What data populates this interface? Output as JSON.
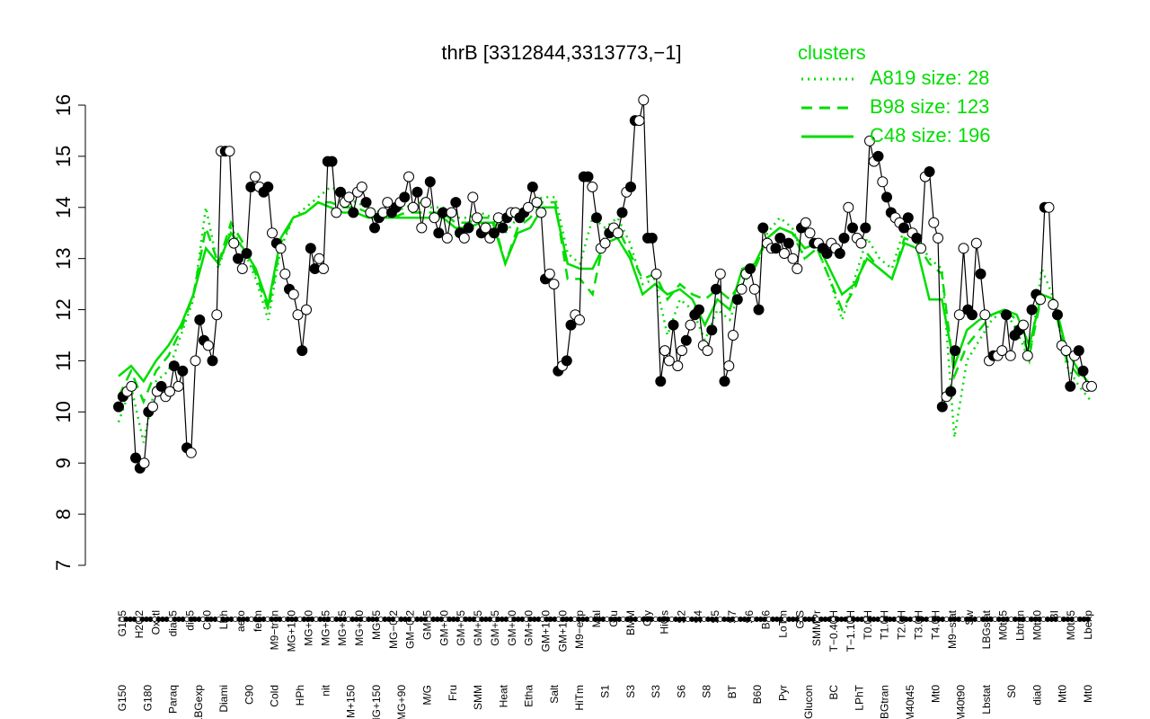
{
  "colors": {
    "series": "#00dd00",
    "points": "#000000",
    "background": "#ffffff"
  },
  "chart_data": {
    "type": "line",
    "title": "thrB [3312844,3313773,−1]",
    "xlabel": "",
    "ylabel": "",
    "ylim": [
      7,
      16
    ],
    "yticks": [
      7,
      8,
      9,
      10,
      11,
      12,
      13,
      14,
      15,
      16
    ],
    "grid": false,
    "legend": {
      "title": "clusters",
      "placement": "top-right",
      "entries": [
        {
          "label": "A819 size: 28",
          "style": "dotted"
        },
        {
          "label": "B98 size: 123",
          "style": "dashed"
        },
        {
          "label": "C48 size: 196",
          "style": "solid"
        }
      ]
    },
    "x_tick_labels_top": [
      "G135",
      "H2O2",
      "Oxctl",
      "dia15",
      "dia5",
      "C30",
      "LPh",
      "aero",
      "ferm",
      "M9−tran",
      "MG+120",
      "MG+60",
      "MG+45",
      "MG+25",
      "MG+10",
      "MG+5",
      "MG−0.2",
      "GM−0.2",
      "GM+5",
      "GM+10",
      "GM+15",
      "GM+25",
      "GM+45",
      "GM+60",
      "GM+90",
      "GM+120",
      "GM+150",
      "M9−exp",
      "Mal",
      "Glu",
      "BMM",
      "Gly",
      "HiOs",
      "S2",
      "S4",
      "S5",
      "S7",
      "S6",
      "B36",
      "LoTm",
      "G/S",
      "SMMPr",
      "T−0.40H",
      "T−1.10H",
      "T0.0H",
      "T1.0H",
      "T2.0H",
      "T3.0H",
      "T4.0H",
      "M9−stat",
      "Sw",
      "LBGstat",
      "M0t45",
      "Lbtran",
      "M0t90",
      "BI",
      "M0t45",
      "Lbexp"
    ],
    "x_tick_labels_bottom": [
      "G150",
      "G180",
      "Paraq",
      "LBGexp",
      "Diami",
      "C90",
      "Cold",
      "HPh",
      "nit",
      "GM+150",
      "MG+150",
      "MG+90",
      "M/G",
      "Fru",
      "SMM",
      "Heat",
      "Etha",
      "Salt",
      "HiTm",
      "S1",
      "S3",
      "S3",
      "S6",
      "S8",
      "BT",
      "B60",
      "Pyr",
      "Glucon",
      "BC",
      "LPhT",
      "LBGtran",
      "M40t45",
      "Mt0",
      "M40t90",
      "Lbstat",
      "S0",
      "dia0",
      "Mt0",
      "Mt0"
    ],
    "series": [
      {
        "name": "A819",
        "style": "dotted",
        "values": [
          9.8,
          10.5,
          9.4,
          10.6,
          10.8,
          11.5,
          12.2,
          14.0,
          12.8,
          13.6,
          13.2,
          12.6,
          11.8,
          13.2,
          13.8,
          14.0,
          14.2,
          14.4,
          14.3,
          14.1,
          14.0,
          13.9,
          13.9,
          14.0,
          14.1,
          14.0,
          14.0,
          13.8,
          13.8,
          13.9,
          13.8,
          13.5,
          13.8,
          14.1,
          14.2,
          14.2,
          13.1,
          12.9,
          13.8,
          13.6,
          13.8,
          13.3,
          12.5,
          12.6,
          11.5,
          12.2,
          12.0,
          11.4,
          12.0,
          11.8,
          12.5,
          12.8,
          13.5,
          13.8,
          13.6,
          13.0,
          13.2,
          12.6,
          11.8,
          12.6,
          13.4,
          13.0,
          12.8,
          13.6,
          13.4,
          13.0,
          12.8,
          9.5,
          11.0,
          11.4,
          11.8,
          12.0,
          11.6,
          11.0,
          12.8,
          12.2,
          10.9,
          10.5,
          10.2
        ]
      },
      {
        "name": "B98",
        "style": "dashed",
        "values": [
          10.3,
          10.8,
          10.2,
          10.8,
          11.1,
          11.6,
          12.3,
          13.6,
          12.9,
          13.7,
          13.3,
          12.7,
          12.0,
          13.3,
          13.8,
          13.9,
          14.1,
          14.1,
          14.0,
          14.0,
          13.9,
          13.8,
          13.8,
          13.9,
          13.9,
          13.9,
          13.9,
          13.7,
          13.7,
          13.8,
          13.8,
          12.9,
          13.6,
          13.8,
          14.1,
          14.1,
          12.6,
          12.6,
          12.3,
          13.5,
          13.6,
          13.1,
          12.6,
          12.7,
          12.2,
          12.5,
          12.3,
          12.2,
          12.4,
          12.2,
          12.6,
          12.8,
          13.4,
          13.6,
          13.5,
          13.0,
          13.2,
          12.6,
          12.0,
          12.4,
          13.1,
          12.8,
          12.6,
          13.4,
          13.3,
          12.9,
          12.7,
          10.7,
          11.3,
          11.6,
          11.9,
          12.0,
          11.8,
          11.1,
          12.3,
          12.1,
          11.0,
          10.7,
          10.4
        ]
      },
      {
        "name": "C48",
        "style": "solid",
        "values": [
          10.7,
          10.9,
          10.6,
          11.0,
          11.3,
          11.7,
          12.3,
          13.2,
          12.9,
          13.5,
          13.2,
          12.8,
          12.1,
          13.4,
          13.8,
          13.9,
          14.1,
          14.0,
          13.9,
          13.9,
          13.8,
          13.8,
          13.8,
          13.8,
          13.8,
          13.8,
          13.8,
          13.6,
          13.6,
          13.7,
          13.7,
          12.9,
          13.5,
          13.6,
          14.0,
          14.0,
          12.9,
          12.8,
          12.8,
          13.3,
          13.4,
          13.0,
          12.3,
          12.5,
          12.3,
          12.4,
          12.2,
          11.7,
          12.2,
          12.0,
          12.8,
          12.9,
          13.4,
          13.6,
          13.5,
          13.2,
          13.3,
          12.8,
          12.3,
          12.5,
          13.0,
          12.8,
          12.6,
          13.3,
          13.2,
          12.2,
          12.2,
          10.9,
          11.6,
          11.8,
          11.9,
          12.0,
          11.9,
          11.3,
          12.3,
          12.2,
          11.2,
          10.8,
          10.5
        ]
      },
      {
        "name": "thrB",
        "style": "points",
        "values": [
          10.1,
          10.3,
          10.4,
          10.5,
          9.1,
          8.9,
          9.0,
          10.0,
          10.1,
          10.4,
          10.5,
          10.3,
          10.4,
          10.9,
          10.5,
          10.8,
          9.3,
          9.2,
          11.0,
          11.8,
          11.4,
          11.3,
          11.0,
          11.9,
          15.1,
          15.1,
          15.1,
          13.3,
          13.0,
          12.8,
          13.1,
          14.4,
          14.6,
          14.4,
          14.3,
          14.4,
          13.5,
          13.3,
          13.2,
          12.7,
          12.4,
          12.3,
          11.9,
          11.2,
          12.0,
          13.2,
          12.8,
          13.0,
          12.8,
          14.9,
          14.9,
          13.9,
          14.3,
          14.1,
          14.2,
          13.9,
          14.3,
          14.4,
          14.1,
          13.9,
          13.6,
          13.8,
          13.9,
          14.1,
          13.9,
          14.0,
          14.1,
          14.2,
          14.6,
          14.0,
          14.3,
          13.6,
          14.1,
          14.5,
          13.8,
          13.5,
          13.9,
          13.4,
          13.9,
          14.1,
          13.5,
          13.4,
          13.6,
          14.2,
          13.8,
          13.5,
          13.6,
          13.4,
          13.5,
          13.8,
          13.6,
          13.8,
          13.9,
          13.9,
          13.8,
          13.9,
          14.0,
          14.4,
          14.1,
          13.9,
          12.6,
          12.7,
          12.5,
          10.8,
          10.9,
          11.0,
          11.7,
          11.9,
          11.8,
          14.6,
          14.6,
          14.4,
          13.8,
          13.2,
          13.3,
          13.5,
          13.6,
          13.5,
          13.9,
          14.3,
          14.4,
          15.7,
          15.7,
          16.1,
          13.4,
          13.4,
          12.7,
          10.6,
          11.2,
          11.0,
          11.7,
          10.9,
          11.2,
          11.4,
          11.7,
          11.9,
          12.0,
          11.3,
          11.2,
          11.6,
          12.4,
          12.7,
          10.6,
          10.9,
          11.5,
          12.2,
          12.4,
          12.7,
          12.8,
          12.4,
          12.0,
          13.6,
          13.3,
          13.2,
          13.2,
          13.4,
          13.1,
          13.3,
          13.0,
          12.8,
          13.6,
          13.7,
          13.5,
          13.3,
          13.3,
          13.2,
          13.1,
          13.3,
          13.2,
          13.1,
          13.4,
          14.0,
          13.6,
          13.4,
          13.3,
          13.6,
          15.3,
          14.9,
          15.0,
          14.5,
          14.2,
          13.9,
          13.8,
          13.7,
          13.6,
          13.8,
          13.5,
          13.4,
          13.2,
          14.6,
          14.7,
          13.7,
          13.4,
          10.1,
          10.3,
          10.4,
          11.2,
          11.9,
          13.2,
          12.0,
          11.9,
          13.3,
          12.7,
          11.9,
          11.0,
          11.1,
          11.1,
          11.2,
          11.9,
          11.1,
          11.5,
          11.6,
          11.7,
          11.1,
          12.0,
          12.3,
          12.2,
          14.0,
          14.0,
          12.1,
          11.9,
          11.3,
          11.2,
          10.5,
          11.1,
          11.2,
          10.8,
          10.5,
          10.5
        ]
      }
    ]
  }
}
